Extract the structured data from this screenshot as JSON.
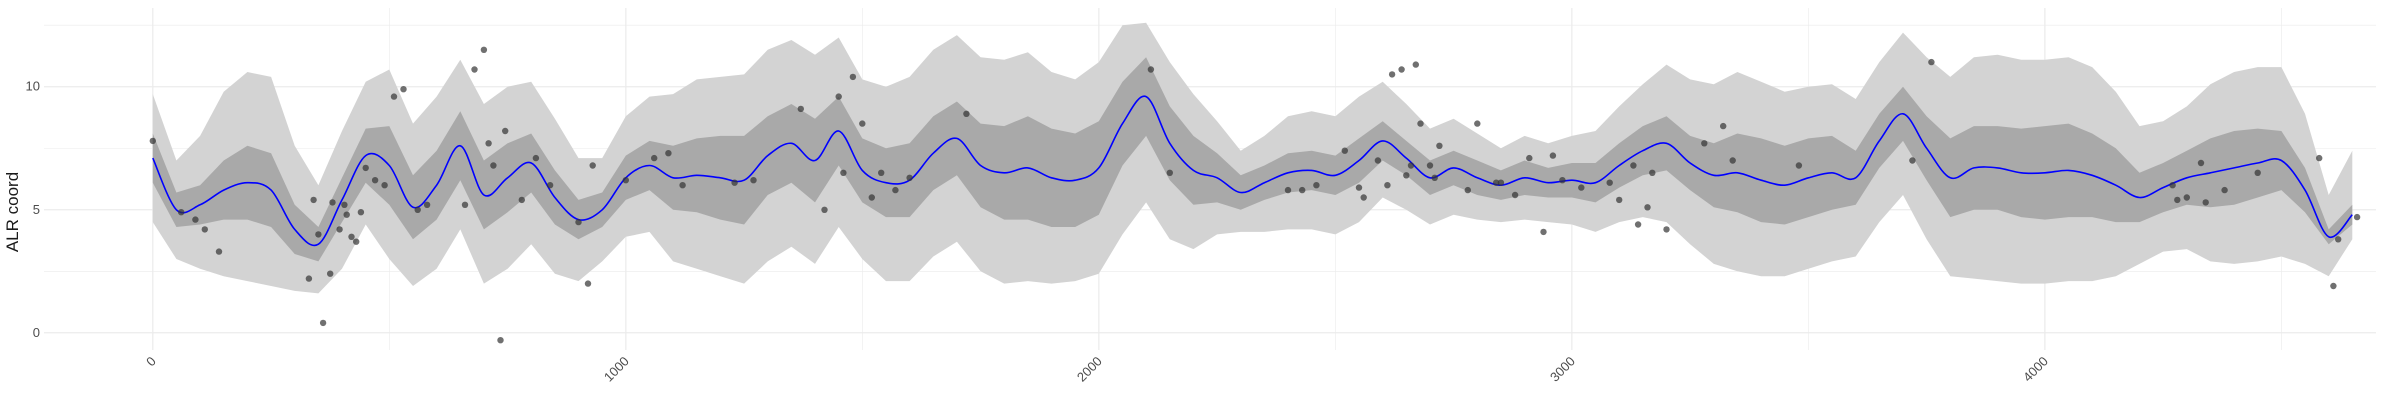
{
  "chart_data": {
    "type": "line",
    "title": "",
    "xlabel": "",
    "ylabel": "ALR coord",
    "xlim": [
      -230,
      4700
    ],
    "ylim": [
      -0.7,
      13.2
    ],
    "grid": true,
    "legend": "none",
    "x_ticks": [
      0,
      1000,
      2000,
      3000,
      4000
    ],
    "x_tick_labels": [
      "0",
      "1000",
      "2000",
      "3000",
      "4000"
    ],
    "y_ticks": [
      0,
      5,
      10
    ],
    "y_tick_labels": [
      "0",
      "5",
      "10"
    ],
    "colors": {
      "line": "#0000ff",
      "inner_band": "#a9a9a9",
      "outer_band": "#d3d3d3",
      "points": "#333333",
      "grid": "#ebebeb"
    },
    "series": [
      {
        "role": "mean",
        "x": [
          0,
          50,
          100,
          150,
          200,
          250,
          300,
          350,
          400,
          450,
          500,
          550,
          600,
          650,
          700,
          750,
          800,
          850,
          900,
          950,
          1000,
          1050,
          1100,
          1150,
          1200,
          1250,
          1300,
          1350,
          1400,
          1450,
          1500,
          1550,
          1600,
          1650,
          1700,
          1750,
          1800,
          1850,
          1900,
          1950,
          2000,
          2050,
          2100,
          2150,
          2200,
          2250,
          2300,
          2350,
          2400,
          2450,
          2500,
          2550,
          2600,
          2650,
          2700,
          2750,
          2800,
          2850,
          2900,
          2950,
          3000,
          3050,
          3100,
          3150,
          3200,
          3250,
          3300,
          3350,
          3400,
          3450,
          3500,
          3550,
          3600,
          3650,
          3700,
          3750,
          3800,
          3850,
          3900,
          3950,
          4000,
          4050,
          4100,
          4150,
          4200,
          4250,
          4300,
          4350,
          4400,
          4450,
          4500,
          4550,
          4600,
          4650
        ],
        "y": [
          7.1,
          5.0,
          5.2,
          5.8,
          6.1,
          5.8,
          4.2,
          3.6,
          5.4,
          7.2,
          6.8,
          5.1,
          6.0,
          7.6,
          5.6,
          6.3,
          6.9,
          5.5,
          4.6,
          5.0,
          6.3,
          6.8,
          6.3,
          6.4,
          6.3,
          6.2,
          7.2,
          7.7,
          7.0,
          8.2,
          6.6,
          6.1,
          6.2,
          7.3,
          7.9,
          6.8,
          6.5,
          6.7,
          6.3,
          6.2,
          6.7,
          8.5,
          9.6,
          7.7,
          6.6,
          6.3,
          5.7,
          6.1,
          6.5,
          6.6,
          6.4,
          7.0,
          7.8,
          7.1,
          6.3,
          6.7,
          6.3,
          6.0,
          6.3,
          6.1,
          6.2,
          6.1,
          6.8,
          7.4,
          7.7,
          6.9,
          6.4,
          6.5,
          6.2,
          6.0,
          6.3,
          6.5,
          6.3,
          7.8,
          8.9,
          7.5,
          6.3,
          6.7,
          6.7,
          6.5,
          6.5,
          6.6,
          6.4,
          6.0,
          5.5,
          5.9,
          6.3,
          6.5,
          6.7,
          6.9,
          7.0,
          5.8,
          3.9,
          4.8
        ]
      },
      {
        "role": "inner-band",
        "x": [
          0,
          50,
          100,
          150,
          200,
          250,
          300,
          350,
          400,
          450,
          500,
          550,
          600,
          650,
          700,
          750,
          800,
          850,
          900,
          950,
          1000,
          1050,
          1100,
          1150,
          1200,
          1250,
          1300,
          1350,
          1400,
          1450,
          1500,
          1550,
          1600,
          1650,
          1700,
          1750,
          1800,
          1850,
          1900,
          1950,
          2000,
          2050,
          2100,
          2150,
          2200,
          2250,
          2300,
          2350,
          2400,
          2450,
          2500,
          2550,
          2600,
          2650,
          2700,
          2750,
          2800,
          2850,
          2900,
          2950,
          3000,
          3050,
          3100,
          3150,
          3200,
          3250,
          3300,
          3350,
          3400,
          3450,
          3500,
          3550,
          3600,
          3650,
          3700,
          3750,
          3800,
          3850,
          3900,
          3950,
          4000,
          4050,
          4100,
          4150,
          4200,
          4250,
          4300,
          4350,
          4400,
          4450,
          4500,
          4550,
          4600,
          4650
        ],
        "lower": [
          6.1,
          4.3,
          4.4,
          4.6,
          4.6,
          4.3,
          3.2,
          2.9,
          4.5,
          6.1,
          5.2,
          3.8,
          4.6,
          6.2,
          4.2,
          4.9,
          5.7,
          4.4,
          3.8,
          4.3,
          5.4,
          5.8,
          5.0,
          4.9,
          4.6,
          4.4,
          5.6,
          6.1,
          5.3,
          6.8,
          5.3,
          4.7,
          4.7,
          5.8,
          6.4,
          5.1,
          4.6,
          4.6,
          4.3,
          4.3,
          4.8,
          6.8,
          8.0,
          6.2,
          5.2,
          5.3,
          5.0,
          5.4,
          5.7,
          5.8,
          5.6,
          6.1,
          7.0,
          6.4,
          5.6,
          6.0,
          5.6,
          5.4,
          5.6,
          5.5,
          5.5,
          5.3,
          5.9,
          6.4,
          6.6,
          5.8,
          5.1,
          4.9,
          4.5,
          4.4,
          4.7,
          5.0,
          5.2,
          6.7,
          7.8,
          6.2,
          4.7,
          5.0,
          5.0,
          4.7,
          4.6,
          4.7,
          4.7,
          4.5,
          4.5,
          4.9,
          5.2,
          5.1,
          5.2,
          5.5,
          5.8,
          4.9,
          3.6,
          4.4
        ],
        "upper": [
          8.1,
          5.7,
          6.0,
          7.0,
          7.6,
          7.3,
          5.2,
          4.3,
          6.3,
          8.3,
          8.4,
          6.4,
          7.4,
          9.0,
          7.0,
          7.7,
          8.1,
          6.6,
          5.4,
          5.7,
          7.2,
          7.8,
          7.6,
          7.9,
          8.0,
          8.0,
          8.8,
          9.3,
          8.7,
          9.6,
          7.9,
          7.5,
          7.7,
          8.8,
          9.4,
          8.5,
          8.4,
          8.8,
          8.3,
          8.1,
          8.6,
          10.2,
          11.2,
          9.2,
          8.0,
          7.3,
          6.4,
          6.8,
          7.3,
          7.4,
          7.2,
          7.9,
          8.6,
          7.8,
          7.0,
          7.4,
          7.0,
          6.6,
          7.0,
          6.7,
          6.9,
          6.9,
          7.7,
          8.4,
          8.8,
          8.0,
          7.7,
          8.1,
          7.9,
          7.6,
          7.9,
          8.0,
          7.4,
          8.9,
          10.0,
          8.8,
          7.9,
          8.4,
          8.4,
          8.3,
          8.4,
          8.5,
          8.1,
          7.5,
          6.5,
          6.9,
          7.4,
          7.9,
          8.2,
          8.3,
          8.2,
          6.7,
          4.2,
          5.2
        ]
      },
      {
        "role": "outer-band",
        "x": [
          0,
          50,
          100,
          150,
          200,
          250,
          300,
          350,
          400,
          450,
          500,
          550,
          600,
          650,
          700,
          750,
          800,
          850,
          900,
          950,
          1000,
          1050,
          1100,
          1150,
          1200,
          1250,
          1300,
          1350,
          1400,
          1450,
          1500,
          1550,
          1600,
          1650,
          1700,
          1750,
          1800,
          1850,
          1900,
          1950,
          2000,
          2050,
          2100,
          2150,
          2200,
          2250,
          2300,
          2350,
          2400,
          2450,
          2500,
          2550,
          2600,
          2650,
          2700,
          2750,
          2800,
          2850,
          2900,
          2950,
          3000,
          3050,
          3100,
          3150,
          3200,
          3250,
          3300,
          3350,
          3400,
          3450,
          3500,
          3550,
          3600,
          3650,
          3700,
          3750,
          3800,
          3850,
          3900,
          3950,
          4000,
          4050,
          4100,
          4150,
          4200,
          4250,
          4300,
          4350,
          4400,
          4450,
          4500,
          4550,
          4600,
          4650
        ],
        "lower": [
          4.5,
          3.0,
          2.6,
          2.3,
          2.1,
          1.9,
          1.7,
          1.6,
          2.6,
          4.4,
          3.0,
          1.9,
          2.6,
          4.2,
          2.0,
          2.6,
          3.6,
          2.4,
          2.1,
          2.9,
          3.9,
          4.1,
          2.9,
          2.6,
          2.3,
          2.0,
          2.9,
          3.5,
          2.8,
          4.3,
          3.0,
          2.1,
          2.1,
          3.1,
          3.7,
          2.5,
          2.0,
          2.1,
          2.0,
          2.1,
          2.4,
          4.0,
          5.3,
          3.8,
          3.4,
          4.0,
          4.1,
          4.1,
          4.2,
          4.2,
          4.0,
          4.5,
          5.5,
          5.0,
          4.4,
          4.8,
          4.6,
          4.5,
          4.6,
          4.5,
          4.4,
          4.1,
          4.5,
          4.7,
          4.5,
          3.6,
          2.8,
          2.5,
          2.3,
          2.3,
          2.6,
          2.9,
          3.1,
          4.5,
          5.6,
          3.8,
          2.3,
          2.2,
          2.1,
          2.0,
          2.0,
          2.1,
          2.1,
          2.3,
          2.8,
          3.3,
          3.4,
          2.9,
          2.8,
          2.9,
          3.1,
          2.8,
          2.3,
          3.8
        ],
        "upper": [
          9.7,
          7.0,
          8.0,
          9.8,
          10.6,
          10.4,
          7.6,
          6.0,
          8.2,
          10.2,
          10.7,
          8.5,
          9.6,
          11.1,
          9.3,
          10.0,
          10.2,
          8.7,
          7.1,
          7.1,
          8.8,
          9.6,
          9.7,
          10.3,
          10.4,
          10.5,
          11.5,
          11.9,
          11.3,
          12.0,
          10.3,
          10.0,
          10.4,
          11.5,
          12.1,
          11.2,
          11.1,
          11.4,
          10.6,
          10.3,
          11.0,
          12.5,
          12.6,
          11.0,
          9.7,
          8.6,
          7.4,
          8.0,
          8.8,
          9.0,
          8.8,
          9.6,
          10.2,
          9.3,
          8.3,
          8.7,
          8.1,
          7.5,
          8.0,
          7.7,
          8.0,
          8.2,
          9.2,
          10.1,
          10.9,
          10.3,
          10.1,
          10.6,
          10.2,
          9.8,
          10.0,
          10.1,
          9.5,
          11.0,
          12.2,
          11.2,
          10.4,
          11.2,
          11.3,
          11.1,
          11.1,
          11.2,
          10.8,
          9.8,
          8.4,
          8.6,
          9.2,
          10.1,
          10.6,
          10.8,
          10.8,
          8.9,
          5.6,
          7.4
        ]
      },
      {
        "role": "observed-points",
        "x": [
          0,
          60,
          90,
          110,
          140,
          330,
          340,
          350,
          360,
          375,
          380,
          395,
          405,
          410,
          420,
          430,
          440,
          450,
          470,
          490,
          510,
          530,
          560,
          580,
          660,
          680,
          700,
          710,
          720,
          735,
          745,
          780,
          810,
          840,
          900,
          920,
          930,
          1000,
          1060,
          1090,
          1120,
          1230,
          1270,
          1370,
          1420,
          1450,
          1460,
          1480,
          1500,
          1520,
          1540,
          1570,
          1600,
          1720,
          2110,
          2150,
          2400,
          2430,
          2460,
          2520,
          2550,
          2560,
          2590,
          2610,
          2620,
          2640,
          2650,
          2660,
          2670,
          2680,
          2700,
          2710,
          2720,
          2780,
          2800,
          2840,
          2850,
          2880,
          2910,
          2940,
          2960,
          2980,
          3020,
          3080,
          3100,
          3130,
          3140,
          3160,
          3170,
          3200,
          3280,
          3320,
          3340,
          3480,
          3720,
          3760,
          4270,
          4280,
          4300,
          4330,
          4340,
          4380,
          4450,
          4580,
          4610,
          4620,
          4660
        ],
        "y": [
          7.8,
          4.9,
          4.6,
          4.2,
          3.3,
          2.2,
          5.4,
          4.0,
          0.4,
          2.4,
          5.3,
          4.2,
          5.2,
          4.8,
          3.9,
          3.7,
          4.9,
          6.7,
          6.2,
          6.0,
          9.6,
          9.9,
          5.0,
          5.2,
          5.2,
          10.7,
          11.5,
          7.7,
          6.8,
          -0.3,
          8.2,
          5.4,
          7.1,
          6.0,
          4.5,
          2.0,
          6.8,
          6.2,
          7.1,
          7.3,
          6.0,
          6.1,
          6.2,
          9.1,
          5.0,
          9.6,
          6.5,
          10.4,
          8.5,
          5.5,
          6.5,
          5.8,
          6.3,
          8.9,
          10.7,
          6.5,
          5.8,
          5.8,
          6.0,
          7.4,
          5.9,
          5.5,
          7.0,
          6.0,
          10.5,
          10.7,
          6.4,
          6.8,
          10.9,
          8.5,
          6.8,
          6.3,
          7.6,
          5.8,
          8.5,
          6.1,
          6.1,
          5.6,
          7.1,
          4.1,
          7.2,
          6.2,
          5.9,
          6.1,
          5.4,
          6.8,
          4.4,
          5.1,
          6.5,
          4.2,
          7.7,
          8.4,
          7.0,
          6.8,
          7.0,
          11.0,
          6.0,
          5.4,
          5.5,
          6.9,
          5.3,
          5.8,
          6.5,
          7.1,
          1.9,
          3.8,
          4.7
        ]
      }
    ]
  }
}
